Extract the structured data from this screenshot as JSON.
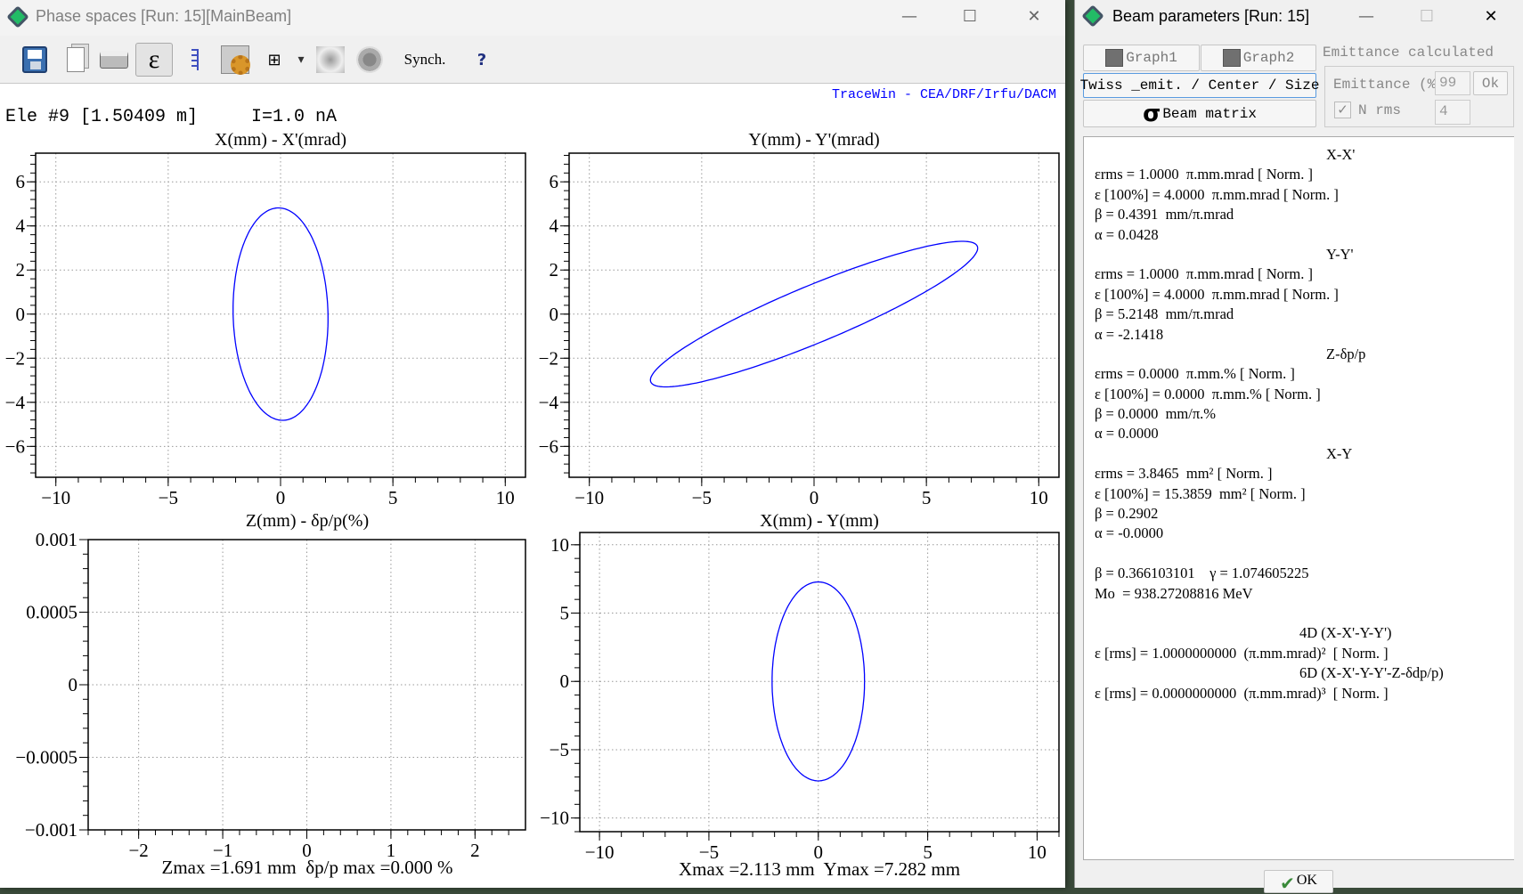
{
  "main_window": {
    "title": "Phase spaces [Run: 15][MainBeam]",
    "controls": {
      "minimize": "—",
      "maximize": "☐",
      "close": "✕"
    },
    "toolbar": {
      "epsilon_glyph": "ε",
      "synch_label": "Synch.",
      "grid_glyph": "⊞",
      "dropdown_glyph": "▾",
      "help_glyph": "?"
    },
    "info": "Ele #9 [1.50409 m]     I=1.0 nA",
    "credit": "TraceWin - CEA/DRF/Irfu/DACM",
    "credit_color": "#0000ff"
  },
  "chart_data": [
    {
      "type": "line",
      "title": "X(mm) - X'(mrad)",
      "xlim": [
        -10.9,
        10.9
      ],
      "ylim": [
        -7.4,
        7.3
      ],
      "xticks": [
        -10,
        -5,
        0,
        5,
        10
      ],
      "xticklabels": [
        "-10",
        "-5",
        "0",
        "5",
        "10"
      ],
      "yticks": [
        -6,
        -4,
        -2,
        0,
        2,
        4,
        6
      ],
      "yticklabels": [
        "-6",
        "-4",
        "-2",
        "0",
        "2",
        "4",
        "6"
      ],
      "grid": true,
      "ellipse": {
        "kind": "twiss",
        "beta": 0.4391,
        "alpha": 0.0428
      },
      "color": "#0000ff"
    },
    {
      "type": "line",
      "title": "Y(mm) - Y'(mrad)",
      "xlim": [
        -10.9,
        10.9
      ],
      "ylim": [
        -7.4,
        7.3
      ],
      "xticks": [
        -10,
        -5,
        0,
        5,
        10
      ],
      "xticklabels": [
        "-10",
        "-5",
        "0",
        "5",
        "10"
      ],
      "yticks": [
        -6,
        -4,
        -2,
        0,
        2,
        4,
        6
      ],
      "yticklabels": [
        "-6",
        "-4",
        "-2",
        "0",
        "2",
        "4",
        "6"
      ],
      "grid": true,
      "ellipse": {
        "kind": "twiss",
        "beta": 5.2148,
        "alpha": -2.1418
      },
      "color": "#0000ff"
    },
    {
      "type": "line",
      "title": "Z(mm) - δp/p(%)",
      "xlim": [
        -2.6,
        2.6
      ],
      "ylim": [
        -0.001,
        0.001
      ],
      "xticks": [
        -2,
        -1,
        0,
        1,
        2
      ],
      "xticklabels": [
        "-2",
        "-1",
        "0",
        "1",
        "2"
      ],
      "yticks": [
        -0.001,
        -0.0005,
        0,
        0.0005,
        0.001
      ],
      "yticklabels": [
        "-0.001",
        "-0.0005",
        "0",
        "0.0005",
        "0.001"
      ],
      "grid": true,
      "ellipse": null,
      "footer": "Zmax =1.691 mm  δp/p max =0.000 %"
    },
    {
      "type": "line",
      "title": "X(mm) - Y(mm)",
      "xlim": [
        -10.9,
        11
      ],
      "ylim": [
        -11,
        10.9
      ],
      "xticks": [
        -10,
        -5,
        0,
        5,
        10
      ],
      "xticklabels": [
        "-10",
        "-5",
        "0",
        "5",
        "10"
      ],
      "yticks": [
        -10,
        -5,
        0,
        5,
        10
      ],
      "yticklabels": [
        "-10",
        "-5",
        "0",
        "5",
        "10"
      ],
      "grid": true,
      "ellipse": {
        "kind": "axes",
        "a": 2.113,
        "b": 7.282
      },
      "color": "#0000ff",
      "footer": "Xmax =2.113 mm  Ymax =7.282 mm"
    }
  ],
  "dialog": {
    "title": "Beam parameters [Run: 15]",
    "controls": {
      "minimize": "—",
      "maximize": "☐",
      "close": "✕"
    },
    "graph1": "Graph1",
    "graph2": "Graph2",
    "twiss": "Twiss _emit. / Center / Size",
    "sigma_glyph": "σ",
    "beam_matrix": "Beam matrix",
    "group_label": "Emittance calculated",
    "emittance_label": "Emittance (%)",
    "emittance_value": "99",
    "ok_small": "Ok",
    "nrms_label": "N rms",
    "nrms_check_glyph": "✓",
    "nrms_value": "4",
    "ok": "OK",
    "lines": [
      {
        "cls": "h",
        "text": "X-X'"
      },
      {
        "cls": "",
        "text": "εrms = 1.0000  π.mm.mrad [ Norm. ]"
      },
      {
        "cls": "",
        "text": "ε [100%] = 4.0000  π.mm.mrad [ Norm. ]"
      },
      {
        "cls": "",
        "text": "β = 0.4391  mm/π.mrad"
      },
      {
        "cls": "",
        "text": "α = 0.0428"
      },
      {
        "cls": "h",
        "text": "Y-Y'"
      },
      {
        "cls": "",
        "text": "εrms = 1.0000  π.mm.mrad [ Norm. ]"
      },
      {
        "cls": "",
        "text": "ε [100%] = 4.0000  π.mm.mrad [ Norm. ]"
      },
      {
        "cls": "",
        "text": "β = 5.2148  mm/π.mrad"
      },
      {
        "cls": "",
        "text": "α = -2.1418"
      },
      {
        "cls": "h",
        "text": "Z-δp/p"
      },
      {
        "cls": "",
        "text": "εrms = 0.0000  π.mm.% [ Norm. ]"
      },
      {
        "cls": "",
        "text": "ε [100%] = 0.0000  π.mm.% [ Norm. ]"
      },
      {
        "cls": "",
        "text": "β = 0.0000  mm/π.%"
      },
      {
        "cls": "",
        "text": "α = 0.0000"
      },
      {
        "cls": "h",
        "text": "X-Y"
      },
      {
        "cls": "",
        "text": "εrms = 3.8465  mm² [ Norm. ]"
      },
      {
        "cls": "",
        "text": "ε [100%] = 15.3859  mm² [ Norm. ]"
      },
      {
        "cls": "",
        "text": "β = 0.2902"
      },
      {
        "cls": "",
        "text": "α = -0.0000"
      },
      {
        "cls": "",
        "text": ""
      },
      {
        "cls": "",
        "text": "β = 0.366103101    γ = 1.074605225"
      },
      {
        "cls": "",
        "text": "Mo  = 938.27208816 MeV"
      },
      {
        "cls": "",
        "text": ""
      },
      {
        "cls": "h2",
        "text": "4D (X-X'-Y-Y')"
      },
      {
        "cls": "",
        "text": "ε [rms] = 1.0000000000  (π.mm.mrad)²  [ Norm. ]"
      },
      {
        "cls": "h2",
        "text": "6D (X-X'-Y-Y'-Z-δdp/p)"
      },
      {
        "cls": "",
        "text": "ε [rms] = 0.0000000000  (π.mm.mrad)³  [ Norm. ]"
      }
    ],
    "emittance_100pct_norm": 4.0,
    "rel_beta": 0.366103101,
    "rel_gamma": 1.074605225
  }
}
